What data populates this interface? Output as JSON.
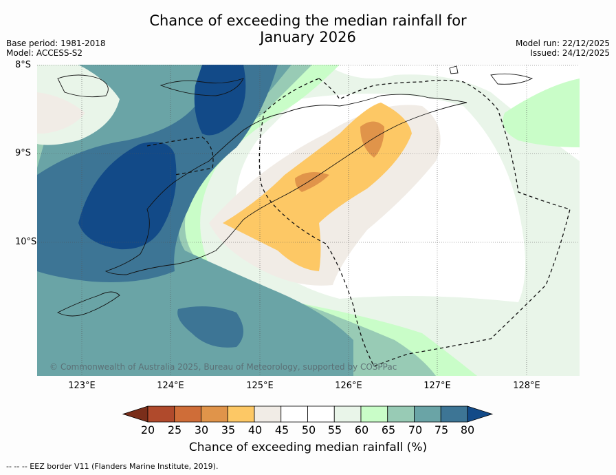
{
  "header": {
    "title_line1": "Chance of exceeding the median rainfall for",
    "title_line2": "January 2026",
    "base_period": "Base period: 1981-2018",
    "model": "Model: ACCESS-S2",
    "model_run": "Model run: 22/12/2025",
    "issued": "Issued: 24/12/2025"
  },
  "map": {
    "lat_labels": [
      "8°S",
      "9°S",
      "10°S"
    ],
    "lon_labels": [
      "123°E",
      "124°E",
      "125°E",
      "126°E",
      "127°E",
      "128°E"
    ],
    "copyright": "© Commonwealth of Australia 2025, Bureau of Meteorology, supported by COSPPac"
  },
  "colorbar": {
    "ticks": [
      "20",
      "25",
      "30",
      "35",
      "40",
      "45",
      "50",
      "55",
      "60",
      "65",
      "70",
      "75",
      "80"
    ],
    "colors": [
      "#7a2e1a",
      "#b04a2c",
      "#cf6d38",
      "#e0944a",
      "#fdc865",
      "#f1ece6",
      "#ffffff",
      "#ffffff",
      "#e9f5e9",
      "#c9fdc8",
      "#98cbb5",
      "#6aa4a6",
      "#3d7595",
      "#124a88"
    ],
    "label": "Chance of exceeding median rainfall (%)"
  },
  "footnote": "--  --  -- EEZ border V11 (Flanders Marine Institute, 2019)."
}
